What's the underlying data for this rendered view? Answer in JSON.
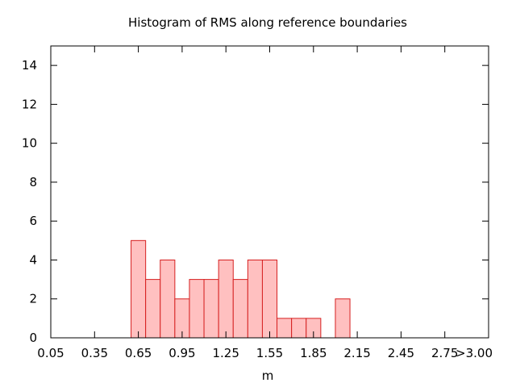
{
  "chart_data": {
    "type": "bar",
    "title": "Histogram of RMS along reference boundaries",
    "xlabel": "m",
    "ylabel": "",
    "xlim": [
      0.05,
      3.05
    ],
    "ylim": [
      0,
      15
    ],
    "x_tick_values": [
      0.05,
      0.35,
      0.65,
      0.95,
      1.25,
      1.55,
      1.85,
      2.15,
      2.45,
      2.75,
      3.05
    ],
    "x_tick_labels": [
      "0.05",
      "0.35",
      "0.65",
      "0.95",
      "1.25",
      "1.55",
      "1.85",
      "2.15",
      "2.45",
      "2.75",
      ">3.00"
    ],
    "y_ticks": [
      0,
      2,
      4,
      6,
      8,
      10,
      12,
      14
    ],
    "bin_width": 0.1,
    "bins": [
      {
        "x": 0.6,
        "count": 5
      },
      {
        "x": 0.7,
        "count": 3
      },
      {
        "x": 0.8,
        "count": 4
      },
      {
        "x": 0.9,
        "count": 2
      },
      {
        "x": 1.0,
        "count": 3
      },
      {
        "x": 1.1,
        "count": 3
      },
      {
        "x": 1.2,
        "count": 4
      },
      {
        "x": 1.3,
        "count": 3
      },
      {
        "x": 1.4,
        "count": 4
      },
      {
        "x": 1.5,
        "count": 4
      },
      {
        "x": 1.6,
        "count": 1
      },
      {
        "x": 1.7,
        "count": 1
      },
      {
        "x": 1.8,
        "count": 1
      },
      {
        "x": 2.0,
        "count": 2
      }
    ],
    "grid": false,
    "legend": "none",
    "bar_fill": "#ffc0c0",
    "bar_stroke": "#d62020"
  }
}
